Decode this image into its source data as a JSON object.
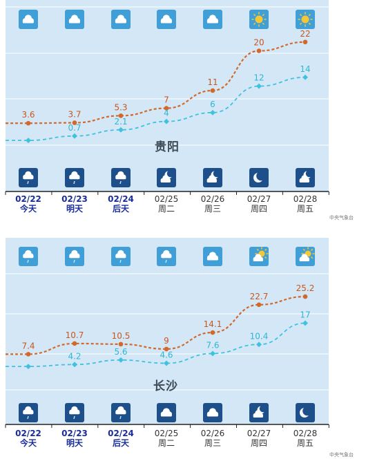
{
  "source_label": "中央气象台",
  "colors": {
    "background": "#d3e7f6",
    "grid": "#ffffff",
    "high_line": "#d2692c",
    "low_line": "#3fc2de",
    "highlight_date": "#1a2d9a",
    "normal_date": "#333333",
    "day_icon_bg": "#3f9fd6",
    "night_icon_bg": "#1d4f8a"
  },
  "chart_data": [
    {
      "type": "line",
      "city": "贵阳",
      "categories": [
        "02/22",
        "02/23",
        "02/24",
        "02/25",
        "02/26",
        "02/27",
        "02/28"
      ],
      "weekdays": [
        "今天",
        "明天",
        "后天",
        "周二",
        "周三",
        "周四",
        "周五"
      ],
      "highlighted_days": [
        true,
        true,
        true,
        false,
        false,
        false,
        false
      ],
      "series": [
        {
          "role": "high",
          "values": [
            3.6,
            3.7,
            5.3,
            7,
            11,
            20,
            22
          ],
          "labels": [
            "3.6",
            "3.7",
            "5.3",
            "7",
            "11",
            "20",
            "22"
          ]
        },
        {
          "role": "low",
          "values": [
            -0.3,
            0.7,
            2.1,
            4,
            6,
            12,
            14
          ],
          "labels": [
            "",
            "0.7",
            "2.1",
            "4",
            "6",
            "12",
            "14"
          ]
        }
      ],
      "ylim": [
        -2,
        24
      ],
      "day_icons": [
        "cloud-icon",
        "cloud-icon",
        "cloud-icon",
        "cloud-icon",
        "cloud-icon",
        "sun-icon",
        "sun-icon"
      ],
      "night_icons": [
        "cloud-rain-icon",
        "cloud-rain-icon",
        "cloud-rain-icon",
        "moon-cloud-icon",
        "moon-cloud-icon",
        "moon-icon",
        "moon-cloud-icon"
      ]
    },
    {
      "type": "line",
      "city": "长沙",
      "categories": [
        "02/22",
        "02/23",
        "02/24",
        "02/25",
        "02/26",
        "02/27",
        "02/28"
      ],
      "weekdays": [
        "今天",
        "明天",
        "后天",
        "周二",
        "周三",
        "周四",
        "周五"
      ],
      "highlighted_days": [
        true,
        true,
        true,
        false,
        false,
        false,
        false
      ],
      "series": [
        {
          "role": "high",
          "values": [
            7.4,
            10.7,
            10.5,
            9,
            14.1,
            22.7,
            25.2
          ],
          "labels": [
            "7.4",
            "10.7",
            "10.5",
            "9",
            "14.1",
            "22.7",
            "25.2"
          ]
        },
        {
          "role": "low",
          "values": [
            3.6,
            4.2,
            5.6,
            4.6,
            7.6,
            10.4,
            17
          ],
          "labels": [
            "",
            "4.2",
            "5.6",
            "4.6",
            "7.6",
            "10.4",
            "17"
          ]
        }
      ],
      "ylim": [
        0,
        28
      ],
      "day_icons": [
        "cloud-rain-icon",
        "cloud-rain-icon",
        "cloud-rain-icon",
        "cloud-rain-icon",
        "cloud-icon",
        "sun-cloud-icon",
        "sun-cloud-icon"
      ],
      "night_icons": [
        "cloud-rain-icon",
        "cloud-rain-icon",
        "cloud-rain-icon",
        "cloud-icon",
        "cloud-icon",
        "moon-cloud-icon",
        "moon-icon"
      ]
    }
  ]
}
